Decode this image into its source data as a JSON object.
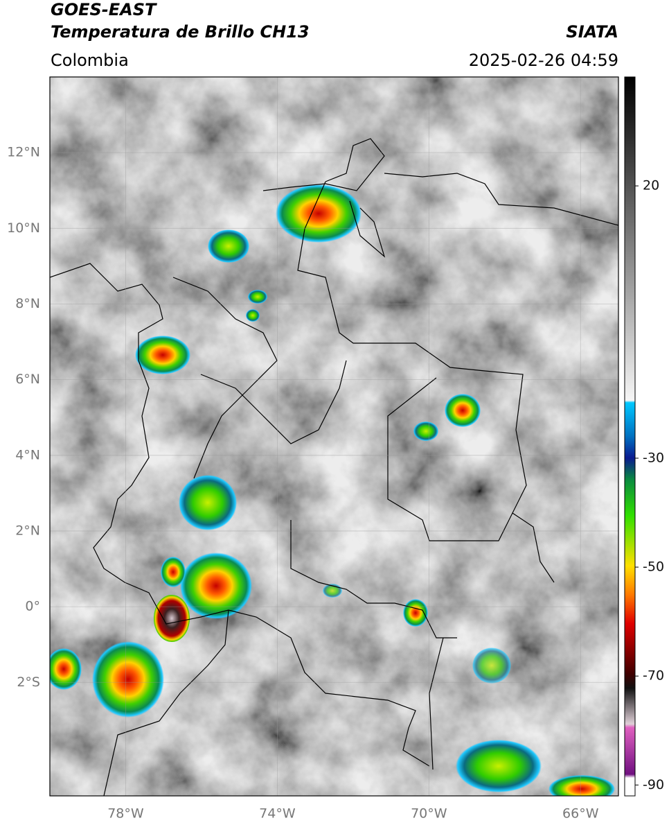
{
  "header": {
    "satellite": "GOES-EAST",
    "product": "Temperatura de Brillo CH13",
    "region": "Colombia",
    "source": "SIATA",
    "datetime": "2025-02-26 04:59"
  },
  "map": {
    "xlim": [
      -80,
      -65
    ],
    "ylim": [
      -5,
      14
    ],
    "yticks": [
      {
        "value": 12,
        "label": "12°N"
      },
      {
        "value": 10,
        "label": "10°N"
      },
      {
        "value": 8,
        "label": "8°N"
      },
      {
        "value": 6,
        "label": "6°N"
      },
      {
        "value": 4,
        "label": "4°N"
      },
      {
        "value": 2,
        "label": "2°N"
      },
      {
        "value": 0,
        "label": "0°"
      },
      {
        "value": -2,
        "label": "2°S"
      }
    ],
    "xticks": [
      {
        "value": -78,
        "label": "78°W"
      },
      {
        "value": -74,
        "label": "74°W"
      },
      {
        "value": -70,
        "label": "70°W"
      },
      {
        "value": -66,
        "label": "66°W"
      }
    ],
    "grid": true
  },
  "colorbar": {
    "clim": [
      -92,
      40
    ],
    "ticks": [
      20,
      -30,
      -50,
      -70,
      -90
    ]
  }
}
